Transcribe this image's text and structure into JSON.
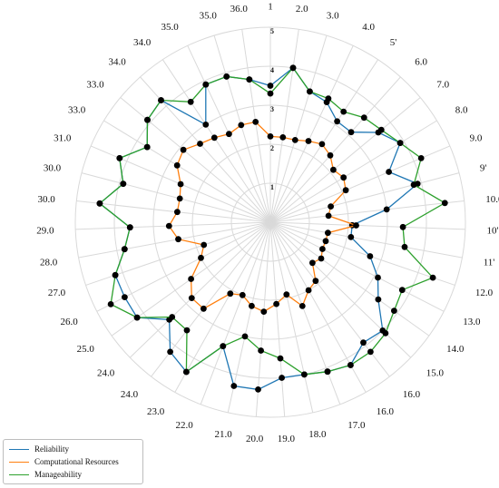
{
  "chart_data": {
    "type": "radar",
    "categories": [
      "1",
      "2.0",
      "3.0",
      "4.0",
      "5'",
      "6.0",
      "7.0",
      "8.0",
      "9.0",
      "9'",
      "10.0",
      "10'",
      "11'",
      "12.0",
      "13.0",
      "14.0",
      "15.0",
      "16.0",
      "16.0",
      "17.0",
      "18.0",
      "19.0",
      "20.0",
      "21.0",
      "22.0",
      "23.0",
      "24.0",
      "24.0",
      "25.0",
      "26.0",
      "27.0",
      "28.0",
      "29.0",
      "30.0",
      "30.0",
      "31.0",
      "33.0",
      "33.0",
      "34.0",
      "34.0",
      "35.0",
      "35.0",
      "36.0"
    ],
    "rlim": [
      0,
      5
    ],
    "rticks": [
      "1",
      "2",
      "3",
      "4",
      "5"
    ],
    "grid": true,
    "legend_position": "bottom-left",
    "series": [
      {
        "name": "Reliability",
        "color": "#1f77b4",
        "values": [
          3.5,
          4.0,
          3.5,
          3.4,
          3.1,
          3.1,
          3.6,
          3.9,
          3.3,
          3.9,
          3.0,
          2.1,
          2.1,
          2.7,
          3.1,
          3.4,
          4.0,
          3.9,
          4.2,
          4.1,
          4.0,
          4.0,
          4.3,
          4.3,
          3.4,
          4.4,
          4.2,
          3.6,
          4.2,
          4.2,
          4.2,
          3.8,
          3.6,
          4.4,
          3.9,
          4.2,
          3.7,
          4.1,
          4.2,
          3.0,
          3.9,
          3.9,
          3.7
        ]
      },
      {
        "name": "Computational Resources",
        "color": "#ff7f0e",
        "values": [
          2.2,
          2.2,
          2.2,
          2.3,
          2.4,
          2.3,
          2.1,
          2.2,
          2.1,
          1.6,
          1.5,
          2.2,
          1.5,
          1.5,
          1.5,
          1.6,
          1.5,
          1.9,
          2.0,
          2.3,
          1.9,
          2.1,
          2.3,
          2.2,
          2.0,
          2.1,
          2.8,
          2.8,
          2.5,
          2.0,
          1.8,
          2.4,
          2.6,
          2.4,
          2.4,
          2.5,
          2.8,
          2.9,
          2.7,
          2.6,
          2.5,
          2.6,
          2.6
        ]
      },
      {
        "name": "Manageability",
        "color": "#2ca02c",
        "values": [
          3.3,
          4.0,
          3.5,
          3.5,
          3.4,
          3.6,
          3.7,
          3.9,
          4.2,
          3.8,
          4.5,
          3.4,
          3.5,
          4.4,
          3.8,
          3.9,
          4.1,
          4.2,
          4.2,
          4.1,
          4.0,
          3.5,
          3.3,
          3.0,
          3.4,
          4.4,
          3.5,
          3.5,
          4.2,
          4.6,
          4.2,
          3.8,
          3.6,
          4.4,
          3.9,
          4.2,
          3.7,
          4.1,
          4.2,
          3.7,
          3.9,
          3.9,
          3.7
        ]
      }
    ]
  }
}
